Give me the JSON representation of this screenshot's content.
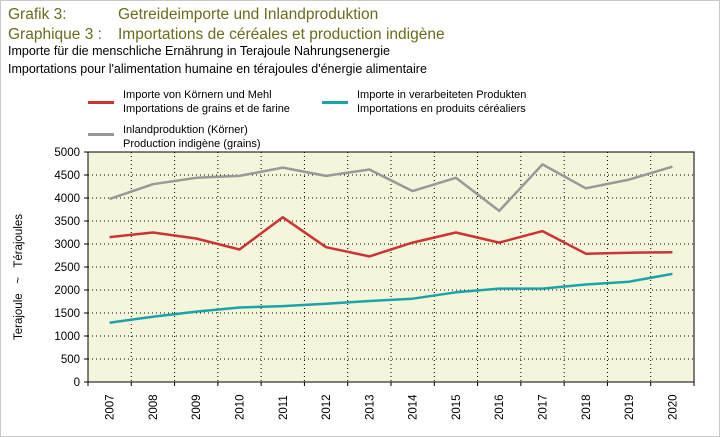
{
  "header": {
    "title_de_label": "Grafik 3:",
    "title_de": "Getreideimporte und Inlandproduktion",
    "title_fr_label": "Graphique 3 :",
    "title_fr": "Importations de céréales et production indigène",
    "subtitle_de": "Importe für die menschliche Ernährung in Terajoule Nahrungsenergie",
    "subtitle_fr": "Importations pour l'alimentation humaine en térajoules d'énergie alimentaire"
  },
  "chart_data": {
    "type": "line",
    "x": [
      "2007",
      "2008",
      "2009",
      "2010",
      "2011",
      "2012",
      "2013",
      "2014",
      "2015",
      "2016",
      "2017",
      "2018",
      "2019",
      "2020"
    ],
    "ylabel": "Terajoule   ~   Térajoules",
    "ylim": [
      0,
      5000
    ],
    "yticks": [
      0,
      500,
      1000,
      1500,
      2000,
      2500,
      3000,
      3500,
      4000,
      4500,
      5000
    ],
    "grid": true,
    "plot_background": "#f5f5dc",
    "series": [
      {
        "name_de": "Importe von Körnern und Mehl",
        "name_fr": "Importations de grains et de farine",
        "color": "#cc3333",
        "values": [
          3150,
          3250,
          3120,
          2880,
          3580,
          2930,
          2730,
          3030,
          3250,
          3030,
          3280,
          2790,
          2810,
          2820
        ]
      },
      {
        "name_de": "Importe in verarbeiteten Produkten",
        "name_fr": "Importations en produits céréaliers",
        "color": "#1aa3a8",
        "values": [
          1290,
          1420,
          1530,
          1620,
          1650,
          1700,
          1760,
          1810,
          1950,
          2030,
          2030,
          2120,
          2180,
          2350
        ]
      },
      {
        "name_de": "Inlandproduktion (Körner)",
        "name_fr": "Production indigène (grains)",
        "color": "#999999",
        "values": [
          3980,
          4300,
          4440,
          4480,
          4660,
          4480,
          4620,
          4150,
          4440,
          3720,
          4730,
          4210,
          4400,
          4680
        ]
      }
    ]
  }
}
